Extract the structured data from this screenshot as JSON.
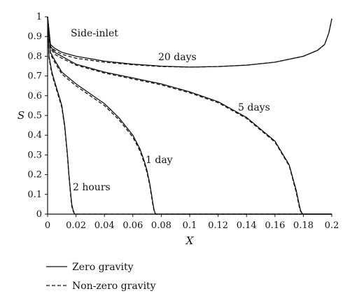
{
  "chart_data": {
    "type": "line",
    "xlabel": "X",
    "ylabel": "S",
    "xlim": [
      0,
      0.2
    ],
    "ylim": [
      0,
      1
    ],
    "x_ticks": [
      "0",
      "0.02",
      "0.04",
      "0.06",
      "0.08",
      "0.1",
      "0.12",
      "0.14",
      "0.16",
      "0.18",
      "0.2"
    ],
    "y_ticks": [
      "0",
      "0.1",
      "0.2",
      "0.3",
      "0.4",
      "0.5",
      "0.6",
      "0.7",
      "0.8",
      "0.9",
      "1"
    ],
    "grid": false,
    "legend": {
      "placement": "bottom-left",
      "entries": [
        {
          "label": "Zero gravity",
          "style": "solid"
        },
        {
          "label": "Non-zero gravity",
          "style": "dashed"
        }
      ]
    },
    "annotations": [
      "Side-inlet",
      "20 days",
      "5 days",
      "1 day",
      "2 hours"
    ],
    "series": [
      {
        "style": "solid",
        "curve": "20 days",
        "x": [
          0,
          0.002,
          0.005,
          0.01,
          0.02,
          0.04,
          0.06,
          0.08,
          0.1,
          0.12,
          0.14,
          0.16,
          0.18,
          0.19,
          0.195,
          0.198,
          0.2
        ],
        "y": [
          1.0,
          0.86,
          0.84,
          0.82,
          0.8,
          0.775,
          0.76,
          0.75,
          0.745,
          0.748,
          0.755,
          0.77,
          0.8,
          0.83,
          0.86,
          0.92,
          0.99
        ]
      },
      {
        "style": "dashed",
        "curve": "20 days",
        "x": [
          0,
          0.002,
          0.005,
          0.01,
          0.02,
          0.04,
          0.06,
          0.08,
          0.1,
          0.12,
          0.14,
          0.16,
          0.18,
          0.19,
          0.195,
          0.198,
          0.2
        ],
        "y": [
          1.0,
          0.85,
          0.83,
          0.81,
          0.79,
          0.77,
          0.757,
          0.748,
          0.745,
          0.748,
          0.755,
          0.77,
          0.8,
          0.83,
          0.86,
          0.92,
          0.99
        ]
      },
      {
        "style": "solid",
        "curve": "5 days",
        "x": [
          0,
          0.002,
          0.005,
          0.01,
          0.02,
          0.04,
          0.06,
          0.08,
          0.1,
          0.12,
          0.14,
          0.16,
          0.17,
          0.175,
          0.177,
          0.178,
          0.179,
          0.18,
          0.2
        ],
        "y": [
          1.0,
          0.85,
          0.82,
          0.8,
          0.76,
          0.72,
          0.69,
          0.66,
          0.62,
          0.57,
          0.49,
          0.37,
          0.25,
          0.12,
          0.05,
          0.02,
          0.005,
          0,
          0
        ]
      },
      {
        "style": "dashed",
        "curve": "5 days",
        "x": [
          0,
          0.002,
          0.005,
          0.01,
          0.02,
          0.04,
          0.06,
          0.08,
          0.1,
          0.12,
          0.14,
          0.16,
          0.17,
          0.175,
          0.177,
          0.178,
          0.179,
          0.18,
          0.2
        ],
        "y": [
          1.0,
          0.84,
          0.81,
          0.79,
          0.755,
          0.715,
          0.685,
          0.655,
          0.615,
          0.565,
          0.485,
          0.365,
          0.245,
          0.11,
          0.04,
          0.015,
          0.004,
          0,
          0
        ]
      },
      {
        "style": "solid",
        "curve": "1 day",
        "x": [
          0,
          0.002,
          0.005,
          0.01,
          0.02,
          0.03,
          0.04,
          0.05,
          0.06,
          0.065,
          0.068,
          0.07,
          0.072,
          0.074,
          0.075,
          0.076,
          0.078,
          0.2
        ],
        "y": [
          1.0,
          0.82,
          0.78,
          0.72,
          0.66,
          0.61,
          0.56,
          0.49,
          0.4,
          0.33,
          0.27,
          0.22,
          0.15,
          0.06,
          0.02,
          0,
          0,
          0
        ]
      },
      {
        "style": "dashed",
        "curve": "1 day",
        "x": [
          0,
          0.002,
          0.005,
          0.01,
          0.02,
          0.03,
          0.04,
          0.05,
          0.06,
          0.065,
          0.068,
          0.07,
          0.072,
          0.074,
          0.075,
          0.076,
          0.078,
          0.2
        ],
        "y": [
          1.0,
          0.81,
          0.77,
          0.71,
          0.65,
          0.6,
          0.55,
          0.48,
          0.39,
          0.32,
          0.26,
          0.21,
          0.14,
          0.05,
          0.015,
          0,
          0,
          0
        ]
      },
      {
        "style": "solid",
        "curve": "2 hours",
        "x": [
          0,
          0.001,
          0.003,
          0.005,
          0.008,
          0.01,
          0.012,
          0.014,
          0.015,
          0.016,
          0.017,
          0.018,
          0.019,
          0.02,
          0.2
        ],
        "y": [
          1.0,
          0.8,
          0.72,
          0.67,
          0.6,
          0.55,
          0.45,
          0.3,
          0.2,
          0.12,
          0.05,
          0.02,
          0,
          0,
          0
        ]
      },
      {
        "style": "dashed",
        "curve": "2 hours",
        "x": [
          0,
          0.001,
          0.003,
          0.005,
          0.008,
          0.01,
          0.012,
          0.014,
          0.015,
          0.016,
          0.017,
          0.018,
          0.019,
          0.02,
          0.2
        ],
        "y": [
          1.0,
          0.79,
          0.71,
          0.66,
          0.59,
          0.54,
          0.44,
          0.29,
          0.19,
          0.11,
          0.04,
          0.015,
          0,
          0,
          0
        ]
      }
    ]
  }
}
